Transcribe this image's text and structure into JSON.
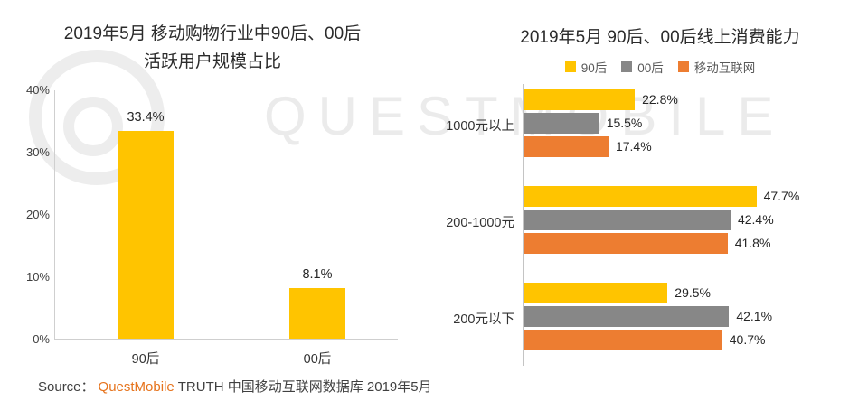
{
  "watermark": "QUESTMOBILE",
  "source": {
    "label": "Source：",
    "brand": "QuestMobile",
    "suffix": "TRUTH 中国移动互联网数据库 2019年5月"
  },
  "colors": {
    "yellow": "#FFC400",
    "gray": "#878787",
    "orange": "#ED7D31",
    "brand_orange": "#E6731C",
    "axis": "#C9C9C9",
    "text_dark": "#262626"
  },
  "chart_data": [
    {
      "type": "bar",
      "title": "2019年5月 移动购物行业中90后、00后活跃用户规模占比",
      "title_lines": [
        "2019年5月 移动购物行业中90后、00后",
        "活跃用户规模占比"
      ],
      "categories": [
        "90后",
        "00后"
      ],
      "values": [
        33.4,
        8.1
      ],
      "value_labels": [
        "33.4%",
        "8.1%"
      ],
      "xlabel": "",
      "ylabel": "",
      "ylim": [
        0,
        40
      ],
      "yticks": [
        "0%",
        "10%",
        "20%",
        "30%",
        "40%"
      ],
      "bar_color": "#FFC400",
      "grid": false,
      "legend_position": "none"
    },
    {
      "type": "bar",
      "orientation": "horizontal",
      "title": "2019年5月 90后、00后线上消费能力",
      "categories": [
        "1000元以上",
        "200-1000元",
        "200元以下"
      ],
      "series": [
        {
          "name": "90后",
          "color": "#FFC400",
          "values": [
            22.8,
            47.7,
            29.5
          ]
        },
        {
          "name": "00后",
          "color": "#878787",
          "values": [
            15.5,
            42.4,
            42.1
          ]
        },
        {
          "name": "移动互联网",
          "color": "#ED7D31",
          "values": [
            17.4,
            41.8,
            40.7
          ]
        }
      ],
      "value_suffix": "%",
      "xlim": [
        0,
        52
      ],
      "grid": false,
      "legend_position": "top"
    }
  ]
}
